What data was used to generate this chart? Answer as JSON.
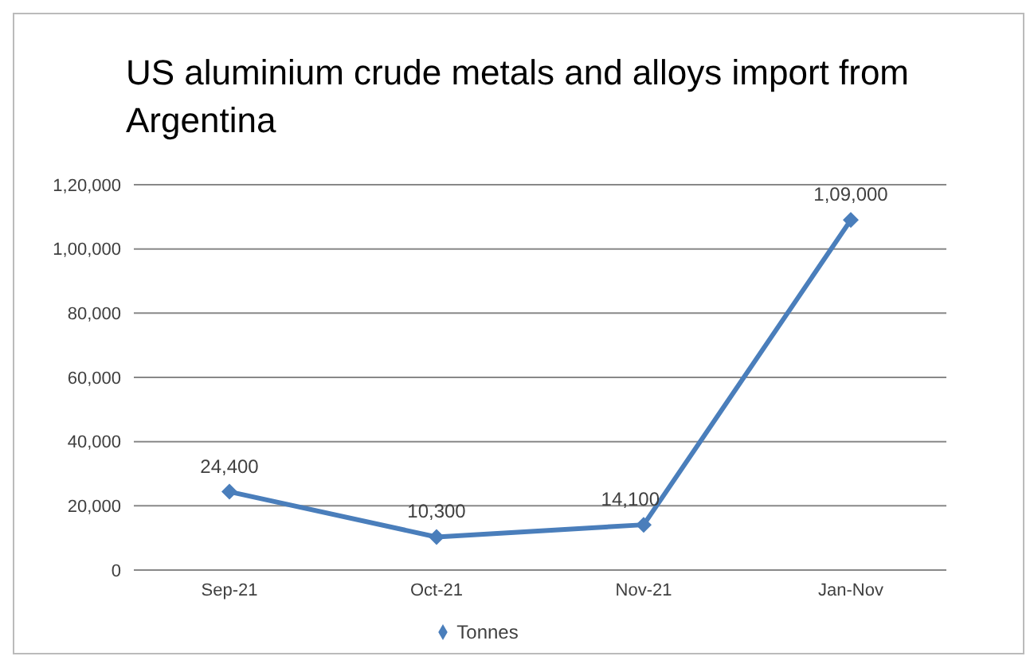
{
  "chart_data": {
    "type": "line",
    "title": "US aluminium crude metals and alloys import from Argentina",
    "categories": [
      "Sep-21",
      "Oct-21",
      "Nov-21",
      "Jan-Nov"
    ],
    "series": [
      {
        "name": "Tonnes",
        "color": "#4a7ebb",
        "values": [
          24400,
          10300,
          14100,
          109000
        ],
        "value_labels": [
          "24,400",
          "10,300",
          "14,100",
          "1,09,000"
        ]
      }
    ],
    "ylim": [
      0,
      120000
    ],
    "yticks": [
      {
        "value": 0,
        "label": "0"
      },
      {
        "value": 20000,
        "label": "20,000"
      },
      {
        "value": 40000,
        "label": "40,000"
      },
      {
        "value": 60000,
        "label": "60,000"
      },
      {
        "value": 80000,
        "label": "80,000"
      },
      {
        "value": 100000,
        "label": "1,00,000"
      },
      {
        "value": 120000,
        "label": "1,20,000"
      }
    ],
    "grid": "y",
    "legend": "bottom",
    "marker": "diamond",
    "line_style": "solid"
  }
}
